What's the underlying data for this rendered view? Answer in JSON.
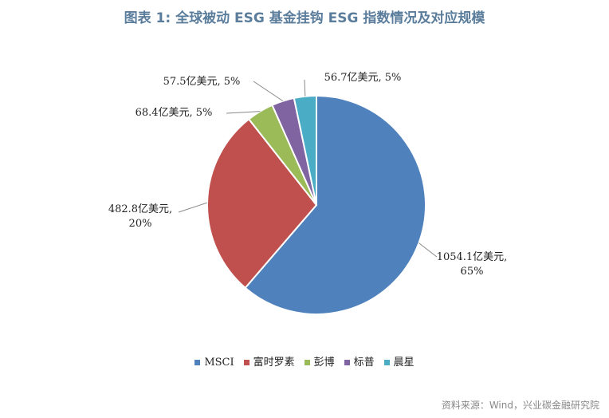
{
  "chart_data": {
    "type": "pie",
    "title": "图表 1:   全球被动 ESG 基金挂钩 ESG 指数情况及对应规模",
    "categories": [
      "MSCI",
      "富时罗素",
      "彭博",
      "标普",
      "晨星"
    ],
    "values": [
      1054.1,
      482.8,
      68.4,
      57.5,
      56.7
    ],
    "value_labels": [
      "1054.1亿美元, 65%",
      "482.8亿美元, 20%",
      "68.4亿美元, 5%",
      "57.5亿美元, 5%",
      "56.7亿美元, 5%"
    ],
    "colors": [
      "#4f81bd",
      "#c0504d",
      "#9bbb59",
      "#8064a2",
      "#4bacc6"
    ],
    "legend": "bottom",
    "source": "资料来源：Wind，兴业碳金融研究院"
  }
}
